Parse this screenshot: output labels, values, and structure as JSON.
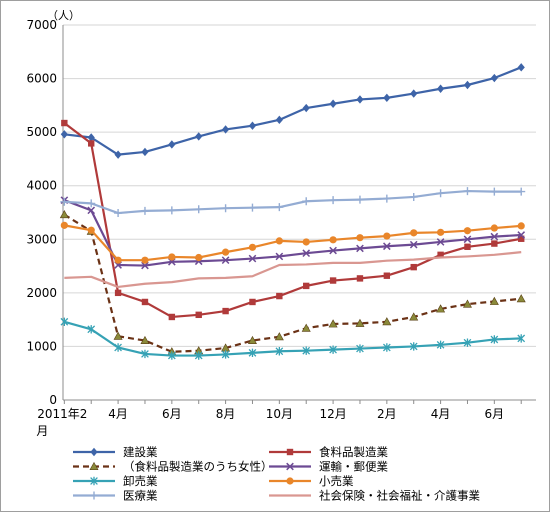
{
  "chart_data": {
    "type": "line",
    "y_unit_label": "（人）",
    "ylim": [
      0,
      7000
    ],
    "yticks": [
      0,
      1000,
      2000,
      3000,
      4000,
      5000,
      6000,
      7000
    ],
    "ytick_labels": [
      "0",
      "1000",
      "2000",
      "3000",
      "4000",
      "5000",
      "6000",
      "7000"
    ],
    "x": [
      "2011-02",
      "2011-03",
      "2011-04",
      "2011-05",
      "2011-06",
      "2011-07",
      "2011-08",
      "2011-09",
      "2011-10",
      "2011-11",
      "2011-12",
      "2012-01",
      "2012-02",
      "2012-03",
      "2012-04",
      "2012-05",
      "2012-06",
      "2012-07"
    ],
    "x_tick_labels": [
      {
        "index": 0,
        "lines": [
          "2011年2",
          "月"
        ]
      },
      {
        "index": 2,
        "lines": [
          "4月"
        ]
      },
      {
        "index": 4,
        "lines": [
          "6月"
        ]
      },
      {
        "index": 6,
        "lines": [
          "8月"
        ]
      },
      {
        "index": 8,
        "lines": [
          "10月"
        ]
      },
      {
        "index": 10,
        "lines": [
          "12月"
        ]
      },
      {
        "index": 12,
        "lines": [
          "2月"
        ]
      },
      {
        "index": 14,
        "lines": [
          "4月"
        ]
      },
      {
        "index": 16,
        "lines": [
          "6月"
        ]
      }
    ],
    "grid": "horizontal",
    "legend_position": "bottom",
    "series": [
      {
        "name": "建設業",
        "color": "#3e64a8",
        "marker": "diamond",
        "dashed": false,
        "values": [
          4960,
          4900,
          4580,
          4630,
          4770,
          4920,
          5050,
          5120,
          5230,
          5450,
          5530,
          5610,
          5640,
          5720,
          5810,
          5880,
          6010,
          6210
        ]
      },
      {
        "name": "食料品製造業",
        "color": "#b03a3a",
        "marker": "square",
        "dashed": false,
        "values": [
          5170,
          4790,
          2000,
          1830,
          1550,
          1590,
          1660,
          1830,
          1940,
          2130,
          2230,
          2270,
          2320,
          2480,
          2710,
          2860,
          2920,
          3010
        ]
      },
      {
        "name": "（食料品製造業のうち女性）",
        "color": "#6b3216",
        "marker": "triangle",
        "dashed": true,
        "values": [
          3460,
          3150,
          1190,
          1110,
          900,
          920,
          970,
          1110,
          1180,
          1340,
          1420,
          1430,
          1460,
          1550,
          1700,
          1790,
          1840,
          1890
        ]
      },
      {
        "name": "運輸・郵便業",
        "color": "#6c4a93",
        "marker": "x",
        "dashed": false,
        "values": [
          3730,
          3540,
          2520,
          2510,
          2580,
          2590,
          2610,
          2640,
          2680,
          2740,
          2790,
          2830,
          2870,
          2900,
          2950,
          3000,
          3050,
          3080
        ]
      },
      {
        "name": "卸売業",
        "color": "#36a2b5",
        "marker": "asterisk",
        "dashed": false,
        "values": [
          1460,
          1320,
          980,
          860,
          830,
          830,
          850,
          880,
          910,
          920,
          940,
          960,
          980,
          1000,
          1030,
          1070,
          1130,
          1150
        ]
      },
      {
        "name": "小売業",
        "color": "#e9862a",
        "marker": "circle",
        "dashed": false,
        "values": [
          3260,
          3170,
          2610,
          2610,
          2670,
          2660,
          2760,
          2850,
          2970,
          2950,
          2990,
          3030,
          3060,
          3120,
          3130,
          3160,
          3210,
          3250
        ]
      },
      {
        "name": "医療業",
        "color": "#94acd3",
        "marker": "plus",
        "dashed": false,
        "values": [
          3700,
          3670,
          3490,
          3530,
          3540,
          3560,
          3580,
          3590,
          3600,
          3710,
          3730,
          3740,
          3760,
          3790,
          3860,
          3900,
          3890,
          3890
        ]
      },
      {
        "name": "社会保険・社会福祉・介護事業",
        "color": "#d99791",
        "marker": "none",
        "dashed": false,
        "values": [
          2280,
          2300,
          2110,
          2170,
          2200,
          2270,
          2280,
          2310,
          2520,
          2530,
          2560,
          2560,
          2600,
          2620,
          2660,
          2680,
          2710,
          2760
        ]
      }
    ]
  }
}
